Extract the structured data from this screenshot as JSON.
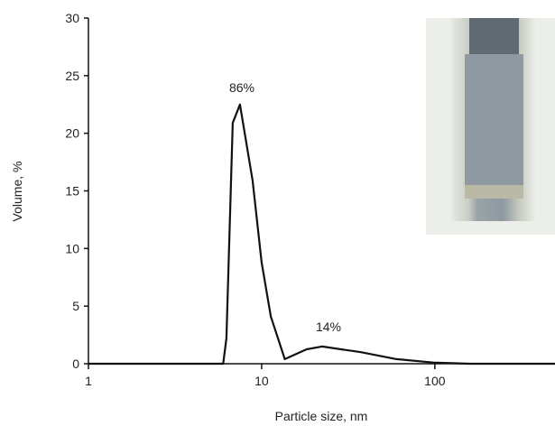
{
  "chart_data": {
    "type": "line",
    "xscale": "log",
    "color": "#111111",
    "xlabel": "Particle size, nm",
    "ylabel": "Volume, %",
    "annotations": [
      "86%",
      "14%"
    ],
    "x": [
      1,
      6.0,
      6.26,
      6.81,
      7.5,
      8.87,
      10,
      11.3,
      13.6,
      18.2,
      22.3,
      37.4,
      60,
      97.7,
      158,
      500
    ],
    "values": [
      0,
      0,
      2.2,
      20.9,
      22.5,
      15.9,
      8.8,
      4.1,
      0.4,
      1.25,
      1.5,
      1.0,
      0.4,
      0.1,
      0,
      0
    ],
    "xlim": [
      1,
      500
    ],
    "ylim": [
      0,
      30
    ],
    "xticks": [
      1,
      10,
      100
    ],
    "yticks": [
      0,
      5,
      10,
      15,
      20,
      25,
      30
    ]
  }
}
